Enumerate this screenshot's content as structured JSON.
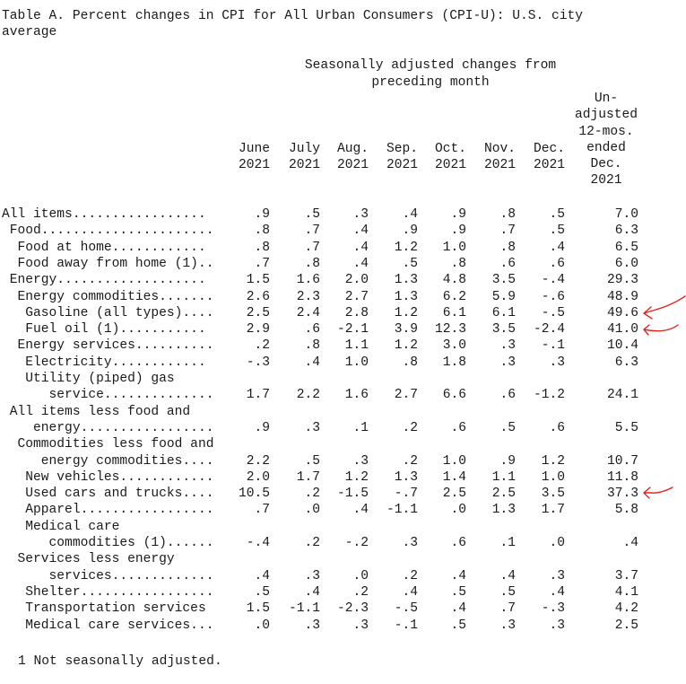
{
  "title": {
    "line1": "Table A. Percent changes in CPI for All Urban Consumers (CPI-U): U.S. city",
    "line2": "average"
  },
  "header": {
    "group_line1": "Seasonally adjusted changes from",
    "group_line2": "preceding month",
    "months": [
      {
        "m": "June",
        "y": "2021"
      },
      {
        "m": "July",
        "y": "2021"
      },
      {
        "m": "Aug.",
        "y": "2021"
      },
      {
        "m": "Sep.",
        "y": "2021"
      },
      {
        "m": "Oct.",
        "y": "2021"
      },
      {
        "m": "Nov.",
        "y": "2021"
      },
      {
        "m": "Dec.",
        "y": "2021"
      }
    ],
    "unadjusted": [
      "Un-",
      "adjusted",
      "12-mos.",
      "ended",
      "Dec.",
      "2021"
    ]
  },
  "rows": [
    {
      "label": "All items.................",
      "values": [
        ".9",
        ".5",
        ".3",
        ".4",
        ".9",
        ".8",
        ".5",
        "7.0"
      ]
    },
    {
      "label": " Food......................",
      "values": [
        ".8",
        ".7",
        ".4",
        ".9",
        ".9",
        ".7",
        ".5",
        "6.3"
      ]
    },
    {
      "label": "  Food at home............",
      "values": [
        ".8",
        ".7",
        ".4",
        "1.2",
        "1.0",
        ".8",
        ".4",
        "6.5"
      ]
    },
    {
      "label": "  Food away from home (1)..",
      "values": [
        ".7",
        ".8",
        ".4",
        ".5",
        ".8",
        ".6",
        ".6",
        "6.0"
      ]
    },
    {
      "label": " Energy...................",
      "values": [
        "1.5",
        "1.6",
        "2.0",
        "1.3",
        "4.8",
        "3.5",
        "-.4",
        "29.3"
      ]
    },
    {
      "label": "  Energy commodities.......",
      "values": [
        "2.6",
        "2.3",
        "2.7",
        "1.3",
        "6.2",
        "5.9",
        "-.6",
        "48.9"
      ]
    },
    {
      "label": "   Gasoline (all types)....",
      "values": [
        "2.5",
        "2.4",
        "2.8",
        "1.2",
        "6.1",
        "6.1",
        "-.5",
        "49.6"
      ]
    },
    {
      "label": "   Fuel oil (1)...........",
      "values": [
        "2.9",
        ".6",
        "-2.1",
        "3.9",
        "12.3",
        "3.5",
        "-2.4",
        "41.0"
      ]
    },
    {
      "label": "  Energy services..........",
      "values": [
        ".2",
        ".8",
        "1.1",
        "1.2",
        "3.0",
        ".3",
        "-.1",
        "10.4"
      ]
    },
    {
      "label": "   Electricity............",
      "values": [
        "-.3",
        ".4",
        "1.0",
        ".8",
        "1.8",
        ".3",
        ".3",
        "6.3"
      ]
    },
    {
      "label": "   Utility (piped) gas",
      "values": [
        "",
        "",
        "",
        "",
        "",
        "",
        "",
        ""
      ]
    },
    {
      "label": "      service..............",
      "values": [
        "1.7",
        "2.2",
        "1.6",
        "2.7",
        "6.6",
        ".6",
        "-1.2",
        "24.1"
      ]
    },
    {
      "label": " All items less food and",
      "values": [
        "",
        "",
        "",
        "",
        "",
        "",
        "",
        ""
      ]
    },
    {
      "label": "    energy.................",
      "values": [
        ".9",
        ".3",
        ".1",
        ".2",
        ".6",
        ".5",
        ".6",
        "5.5"
      ]
    },
    {
      "label": "  Commodities less food and",
      "values": [
        "",
        "",
        "",
        "",
        "",
        "",
        "",
        ""
      ]
    },
    {
      "label": "     energy commodities....",
      "values": [
        "2.2",
        ".5",
        ".3",
        ".2",
        "1.0",
        ".9",
        "1.2",
        "10.7"
      ]
    },
    {
      "label": "   New vehicles............",
      "values": [
        "2.0",
        "1.7",
        "1.2",
        "1.3",
        "1.4",
        "1.1",
        "1.0",
        "11.8"
      ]
    },
    {
      "label": "   Used cars and trucks....",
      "values": [
        "10.5",
        ".2",
        "-1.5",
        "-.7",
        "2.5",
        "2.5",
        "3.5",
        "37.3"
      ]
    },
    {
      "label": "   Apparel.................",
      "values": [
        ".7",
        ".0",
        ".4",
        "-1.1",
        ".0",
        "1.3",
        "1.7",
        "5.8"
      ]
    },
    {
      "label": "   Medical care",
      "values": [
        "",
        "",
        "",
        "",
        "",
        "",
        "",
        ""
      ]
    },
    {
      "label": "      commodities (1)......",
      "values": [
        "-.4",
        ".2",
        "-.2",
        ".3",
        ".6",
        ".1",
        ".0",
        ".4"
      ]
    },
    {
      "label": "  Services less energy",
      "values": [
        "",
        "",
        "",
        "",
        "",
        "",
        "",
        ""
      ]
    },
    {
      "label": "      services.............",
      "values": [
        ".4",
        ".3",
        ".0",
        ".2",
        ".4",
        ".4",
        ".3",
        "3.7"
      ]
    },
    {
      "label": "   Shelter.................",
      "values": [
        ".5",
        ".4",
        ".2",
        ".4",
        ".5",
        ".5",
        ".4",
        "4.1"
      ]
    },
    {
      "label": "   Transportation services",
      "values": [
        "1.5",
        "-1.1",
        "-2.3",
        "-.5",
        ".4",
        ".7",
        "-.3",
        "4.2"
      ]
    },
    {
      "label": "   Medical care services...",
      "values": [
        ".0",
        ".3",
        ".3",
        "-.1",
        ".5",
        ".3",
        ".3",
        "2.5"
      ]
    }
  ],
  "footnote": "1 Not seasonally adjusted.",
  "annotation_color": "#e0241c"
}
